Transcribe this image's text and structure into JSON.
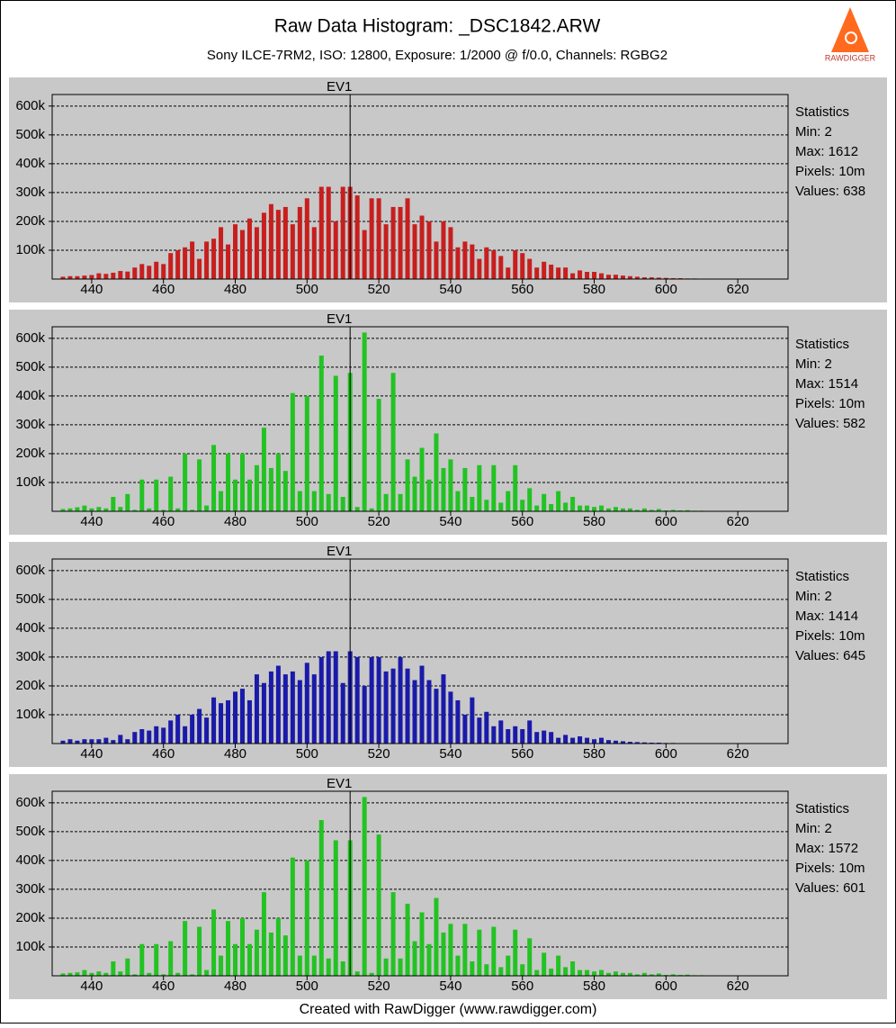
{
  "header": {
    "title": "Raw Data Histogram: _DSC1842.ARW",
    "subtitle": "Sony ILCE-7RM2, ISO: 12800, Exposure: 1/2000 @ f/0.0, Channels: RGBG2"
  },
  "logo": "RAWDIGGER",
  "footer": "Created with RawDigger (www.rawdigger.com)",
  "chart_data": [
    {
      "type": "bar",
      "color": "#c81e1e",
      "annotation": {
        "text": "EV1",
        "x": 512
      },
      "stats": [
        "Statistics",
        "Min: 2",
        "Max: 1612",
        "Pixels: 10m",
        "Values: 638"
      ],
      "xlim": [
        429,
        634
      ],
      "xticks": [
        440,
        460,
        480,
        500,
        520,
        540,
        560,
        580,
        600,
        620
      ],
      "ylim": [
        0,
        640000
      ],
      "yticks": [
        {
          "value": 100000,
          "label": "100k"
        },
        {
          "value": 200000,
          "label": "200k"
        },
        {
          "value": 300000,
          "label": "300k"
        },
        {
          "value": 400000,
          "label": "400k"
        },
        {
          "value": 500000,
          "label": "500k"
        },
        {
          "value": 600000,
          "label": "600k"
        }
      ],
      "grid": true,
      "x": [
        432,
        434,
        436,
        438,
        440,
        442,
        444,
        446,
        448,
        450,
        452,
        454,
        456,
        458,
        460,
        462,
        464,
        466,
        468,
        470,
        472,
        474,
        476,
        478,
        480,
        482,
        484,
        486,
        488,
        490,
        492,
        494,
        496,
        498,
        500,
        502,
        504,
        506,
        508,
        510,
        512,
        514,
        516,
        518,
        520,
        522,
        524,
        526,
        528,
        530,
        532,
        534,
        536,
        538,
        540,
        542,
        544,
        546,
        548,
        550,
        552,
        554,
        556,
        558,
        560,
        562,
        564,
        566,
        568,
        570,
        572,
        574,
        576,
        578,
        580,
        582,
        584,
        586,
        588,
        590,
        592,
        594,
        596,
        598,
        600,
        602,
        604,
        606,
        608,
        610,
        612
      ],
      "values": [
        8000,
        10000,
        10000,
        12000,
        14000,
        20000,
        18000,
        22000,
        28000,
        26000,
        40000,
        52000,
        46000,
        60000,
        52000,
        90000,
        100000,
        110000,
        130000,
        70000,
        130000,
        140000,
        180000,
        120000,
        190000,
        170000,
        210000,
        180000,
        230000,
        260000,
        240000,
        250000,
        190000,
        250000,
        280000,
        180000,
        320000,
        320000,
        200000,
        320000,
        320000,
        290000,
        170000,
        280000,
        280000,
        190000,
        250000,
        250000,
        280000,
        190000,
        220000,
        200000,
        130000,
        200000,
        180000,
        110000,
        130000,
        120000,
        70000,
        110000,
        100000,
        80000,
        40000,
        100000,
        90000,
        70000,
        40000,
        60000,
        50000,
        40000,
        40000,
        20000,
        30000,
        25000,
        25000,
        20000,
        15000,
        15000,
        12000,
        10000,
        8000,
        6000,
        6000,
        5000,
        4000,
        3000,
        3000,
        2000,
        2000,
        1000,
        1000
      ]
    },
    {
      "type": "bar",
      "color": "#22c322",
      "annotation": {
        "text": "EV1",
        "x": 512
      },
      "stats": [
        "Statistics",
        "Min: 2",
        "Max: 1514",
        "Pixels: 10m",
        "Values: 582"
      ],
      "xlim": [
        429,
        634
      ],
      "xticks": [
        440,
        460,
        480,
        500,
        520,
        540,
        560,
        580,
        600,
        620
      ],
      "ylim": [
        0,
        640000
      ],
      "yticks": [
        {
          "value": 100000,
          "label": "100k"
        },
        {
          "value": 200000,
          "label": "200k"
        },
        {
          "value": 300000,
          "label": "300k"
        },
        {
          "value": 400000,
          "label": "400k"
        },
        {
          "value": 500000,
          "label": "500k"
        },
        {
          "value": 600000,
          "label": "600k"
        }
      ],
      "grid": true,
      "x": [
        432,
        434,
        436,
        438,
        440,
        442,
        444,
        446,
        448,
        450,
        452,
        454,
        456,
        458,
        460,
        462,
        464,
        466,
        468,
        470,
        472,
        474,
        476,
        478,
        480,
        482,
        484,
        486,
        488,
        490,
        492,
        494,
        496,
        498,
        500,
        502,
        504,
        506,
        508,
        510,
        512,
        514,
        516,
        518,
        520,
        522,
        524,
        526,
        528,
        530,
        532,
        534,
        536,
        538,
        540,
        542,
        544,
        546,
        548,
        550,
        552,
        554,
        556,
        558,
        560,
        562,
        564,
        566,
        568,
        570,
        572,
        574,
        576,
        578,
        580,
        582,
        584,
        586,
        588,
        590,
        592,
        594,
        596,
        598,
        600,
        602,
        604,
        606,
        608,
        610,
        612
      ],
      "values": [
        8000,
        10000,
        14000,
        20000,
        10000,
        15000,
        10000,
        50000,
        15000,
        60000,
        5000,
        110000,
        10000,
        110000,
        5000,
        120000,
        10000,
        200000,
        5000,
        180000,
        20000,
        230000,
        70000,
        200000,
        110000,
        200000,
        110000,
        160000,
        290000,
        150000,
        200000,
        140000,
        410000,
        70000,
        400000,
        70000,
        540000,
        60000,
        470000,
        50000,
        480000,
        15000,
        620000,
        10000,
        390000,
        60000,
        480000,
        60000,
        180000,
        120000,
        220000,
        110000,
        270000,
        150000,
        180000,
        70000,
        150000,
        50000,
        160000,
        40000,
        160000,
        30000,
        70000,
        160000,
        40000,
        80000,
        20000,
        60000,
        25000,
        70000,
        30000,
        50000,
        20000,
        20000,
        15000,
        20000,
        10000,
        15000,
        10000,
        10000,
        5000,
        10000,
        5000,
        8000,
        3000,
        5000,
        3000,
        4000,
        2000,
        2000,
        1000
      ]
    },
    {
      "type": "bar",
      "color": "#1a1aaa",
      "annotation": {
        "text": "EV1",
        "x": 512
      },
      "stats": [
        "Statistics",
        "Min: 2",
        "Max: 1414",
        "Pixels: 10m",
        "Values: 645"
      ],
      "xlim": [
        429,
        634
      ],
      "xticks": [
        440,
        460,
        480,
        500,
        520,
        540,
        560,
        580,
        600,
        620
      ],
      "ylim": [
        0,
        640000
      ],
      "yticks": [
        {
          "value": 100000,
          "label": "100k"
        },
        {
          "value": 200000,
          "label": "200k"
        },
        {
          "value": 300000,
          "label": "300k"
        },
        {
          "value": 400000,
          "label": "400k"
        },
        {
          "value": 500000,
          "label": "500k"
        },
        {
          "value": 600000,
          "label": "600k"
        }
      ],
      "grid": true,
      "x": [
        432,
        434,
        436,
        438,
        440,
        442,
        444,
        446,
        448,
        450,
        452,
        454,
        456,
        458,
        460,
        462,
        464,
        466,
        468,
        470,
        472,
        474,
        476,
        478,
        480,
        482,
        484,
        486,
        488,
        490,
        492,
        494,
        496,
        498,
        500,
        502,
        504,
        506,
        508,
        510,
        512,
        514,
        516,
        518,
        520,
        522,
        524,
        526,
        528,
        530,
        532,
        534,
        536,
        538,
        540,
        542,
        544,
        546,
        548,
        550,
        552,
        554,
        556,
        558,
        560,
        562,
        564,
        566,
        568,
        570,
        572,
        574,
        576,
        578,
        580,
        582,
        584,
        586,
        588,
        590,
        592,
        594,
        596,
        598,
        600,
        602,
        604,
        606,
        608,
        610,
        612
      ],
      "values": [
        10000,
        15000,
        10000,
        15000,
        15000,
        15000,
        20000,
        12000,
        30000,
        15000,
        40000,
        50000,
        45000,
        60000,
        55000,
        80000,
        100000,
        60000,
        100000,
        120000,
        90000,
        160000,
        140000,
        150000,
        180000,
        190000,
        150000,
        240000,
        210000,
        250000,
        270000,
        240000,
        250000,
        220000,
        280000,
        240000,
        300000,
        320000,
        320000,
        210000,
        320000,
        300000,
        200000,
        300000,
        300000,
        250000,
        260000,
        300000,
        260000,
        220000,
        270000,
        220000,
        190000,
        240000,
        180000,
        150000,
        100000,
        160000,
        90000,
        110000,
        60000,
        80000,
        50000,
        60000,
        50000,
        80000,
        40000,
        45000,
        40000,
        20000,
        30000,
        20000,
        25000,
        20000,
        15000,
        20000,
        12000,
        10000,
        8000,
        6000,
        5000,
        4000,
        3000,
        3000,
        2000,
        2000,
        1000,
        1000,
        1000,
        1000,
        0
      ]
    },
    {
      "type": "bar",
      "color": "#22c322",
      "annotation": {
        "text": "EV1",
        "x": 512
      },
      "stats": [
        "Statistics",
        "Min: 2",
        "Max: 1572",
        "Pixels: 10m",
        "Values: 601"
      ],
      "xlim": [
        429,
        634
      ],
      "xticks": [
        440,
        460,
        480,
        500,
        520,
        540,
        560,
        580,
        600,
        620
      ],
      "ylim": [
        0,
        640000
      ],
      "yticks": [
        {
          "value": 100000,
          "label": "100k"
        },
        {
          "value": 200000,
          "label": "200k"
        },
        {
          "value": 300000,
          "label": "300k"
        },
        {
          "value": 400000,
          "label": "400k"
        },
        {
          "value": 500000,
          "label": "500k"
        },
        {
          "value": 600000,
          "label": "600k"
        }
      ],
      "grid": true,
      "x": [
        432,
        434,
        436,
        438,
        440,
        442,
        444,
        446,
        448,
        450,
        452,
        454,
        456,
        458,
        460,
        462,
        464,
        466,
        468,
        470,
        472,
        474,
        476,
        478,
        480,
        482,
        484,
        486,
        488,
        490,
        492,
        494,
        496,
        498,
        500,
        502,
        504,
        506,
        508,
        510,
        512,
        514,
        516,
        518,
        520,
        522,
        524,
        526,
        528,
        530,
        532,
        534,
        536,
        538,
        540,
        542,
        544,
        546,
        548,
        550,
        552,
        554,
        556,
        558,
        560,
        562,
        564,
        566,
        568,
        570,
        572,
        574,
        576,
        578,
        580,
        582,
        584,
        586,
        588,
        590,
        592,
        594,
        596,
        598,
        600,
        602,
        604,
        606,
        608,
        610,
        612
      ],
      "values": [
        8000,
        10000,
        12000,
        20000,
        10000,
        15000,
        10000,
        50000,
        15000,
        60000,
        5000,
        110000,
        10000,
        110000,
        5000,
        120000,
        10000,
        190000,
        5000,
        170000,
        20000,
        230000,
        70000,
        190000,
        110000,
        200000,
        110000,
        160000,
        290000,
        150000,
        200000,
        140000,
        410000,
        70000,
        400000,
        70000,
        540000,
        60000,
        470000,
        50000,
        470000,
        15000,
        620000,
        10000,
        490000,
        60000,
        290000,
        60000,
        250000,
        120000,
        220000,
        110000,
        270000,
        150000,
        180000,
        70000,
        180000,
        50000,
        160000,
        40000,
        170000,
        30000,
        70000,
        160000,
        40000,
        130000,
        20000,
        80000,
        25000,
        70000,
        30000,
        50000,
        20000,
        20000,
        15000,
        20000,
        10000,
        15000,
        10000,
        10000,
        5000,
        10000,
        5000,
        8000,
        3000,
        5000,
        3000,
        4000,
        2000,
        2000,
        1000
      ]
    }
  ]
}
